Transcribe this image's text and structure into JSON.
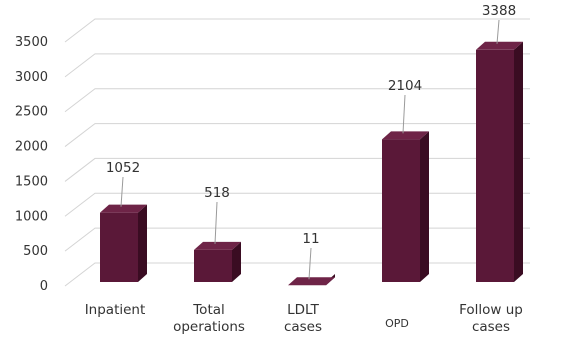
{
  "chart_data": {
    "type": "bar",
    "style": "3d-column",
    "categories": [
      [
        "Inpatient"
      ],
      [
        "Total",
        "operations"
      ],
      [
        "LDLT",
        "cases"
      ],
      [
        "OPD"
      ],
      [
        "Follow up",
        "cases"
      ]
    ],
    "values": [
      1052,
      518,
      11,
      2104,
      3388
    ],
    "value_labels": [
      "1052",
      "518",
      "11",
      "2104",
      "3388"
    ],
    "ylim": [
      0,
      3500
    ],
    "yticks": [
      0,
      500,
      1000,
      1500,
      2000,
      2500,
      3000,
      3500
    ],
    "grid": true,
    "legend": "none",
    "colors": {
      "bar_front": "#5a1838",
      "bar_side": "#3a0c22",
      "bar_top": "#6e2447",
      "grid": "#d4d4d4"
    }
  }
}
